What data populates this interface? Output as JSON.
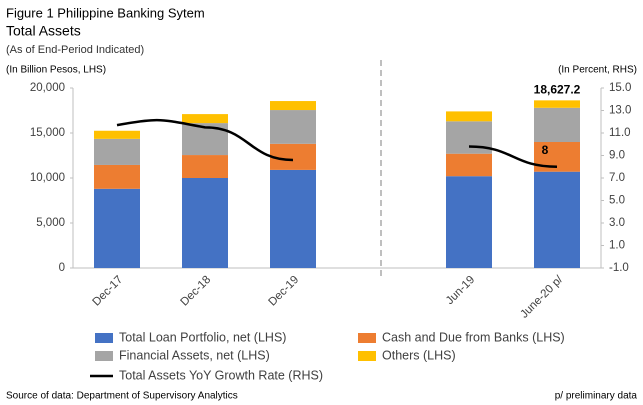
{
  "chart_data": {
    "type": "bar",
    "title": "Figure 1 Philippine Banking Sytem",
    "subtitle": "Total Assets",
    "note": "(As of End-Period Indicated)",
    "ylabel": "(In Billion Pesos, LHS)",
    "y2label": "(In Percent, RHS)",
    "source": "Source of data: Department of Supervisory Analytics",
    "footnote": "p/ preliminary data",
    "stacked": true,
    "categories": [
      "Dec-17",
      "Dec-18",
      "Dec-19",
      null,
      "Jun-19",
      "June-20 p/"
    ],
    "series": [
      {
        "name": "Total Loan Portfolio, net (LHS)",
        "color": "#4472c4",
        "values": [
          8800,
          10000,
          10900,
          null,
          10200,
          10700
        ]
      },
      {
        "name": "Cash and Due from Banks (LHS)",
        "color": "#ed7d31",
        "values": [
          2650,
          2550,
          2900,
          null,
          2500,
          3300
        ]
      },
      {
        "name": "Financial Assets, net (LHS)",
        "color": "#a5a5a5",
        "values": [
          2900,
          3550,
          3750,
          null,
          3600,
          3800
        ]
      },
      {
        "name": "Others (LHS)",
        "color": "#ffc000",
        "values": [
          900,
          1000,
          1000,
          null,
          1100,
          827.2
        ]
      },
      {
        "name": "Total Assets YoY Growth Rate (RHS)",
        "color": "#000000",
        "type": "line",
        "axis": "y2",
        "values": [
          11.7,
          11.5,
          8.6,
          null,
          9.8,
          8.0
        ],
        "value_labels": [
          null,
          null,
          null,
          null,
          null,
          "8"
        ]
      }
    ],
    "annotations": [
      {
        "text": "18,627.2"
      }
    ],
    "ylim": [
      0,
      20000
    ],
    "yticks": [
      0,
      {
        "value": 5000,
        "label": "5,000"
      },
      {
        "value": 10000,
        "label": "10,000"
      },
      {
        "value": 15000,
        "label": "15,000"
      },
      {
        "value": 20000,
        "label": "20,000"
      }
    ],
    "y2lim": [
      -1,
      15
    ],
    "y2ticks": [
      {
        "value": -1,
        "label": "-1.0"
      },
      {
        "value": 1,
        "label": "1.0"
      },
      {
        "value": 3,
        "label": "3.0"
      },
      {
        "value": 5,
        "label": "5.0"
      },
      {
        "value": 7,
        "label": "7.0"
      },
      {
        "value": 9,
        "label": "9.0"
      },
      {
        "value": 11,
        "label": "11.0"
      },
      {
        "value": 13,
        "label": "13.0"
      },
      {
        "value": 15,
        "label": "15.0"
      }
    ],
    "grid": false,
    "legend": "bottom"
  }
}
